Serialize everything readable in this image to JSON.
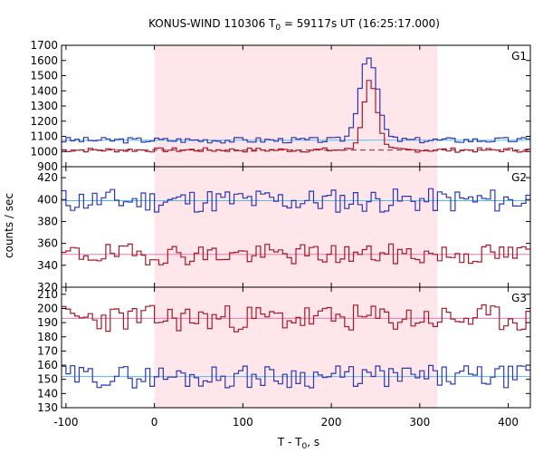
{
  "chart_data": {
    "type": "line",
    "title_main": "KONUS-WIND 110306 T",
    "title_sub": "0",
    "title_rest": " = 59117s UT (16:25:17.000)",
    "xlabel_main": "T - T",
    "xlabel_sub": "0",
    "xlabel_rest": ", s",
    "ylabel": "counts / sec",
    "xlim": [
      -105,
      425
    ],
    "xticks": [
      -100,
      0,
      100,
      200,
      300,
      400
    ],
    "shaded_interval": [
      0,
      320
    ],
    "shade_color": "#ffe6ea",
    "panels": [
      {
        "name": "G1",
        "ylim": [
          900,
          1700
        ],
        "yticks": [
          900,
          1000,
          1100,
          1200,
          1300,
          1400,
          1500,
          1600,
          1700
        ],
        "series": [
          {
            "color": "#2a38b8",
            "base": 1075,
            "noise": 12,
            "seed": 3,
            "peak": {
              "center": 242,
              "width": 14,
              "height": 560
            }
          },
          {
            "color": "#a8182a",
            "base": 1010,
            "noise": 9,
            "seed": 7,
            "peak": {
              "center": 244,
              "width": 11,
              "height": 460
            }
          }
        ],
        "bg_lines": [
          {
            "color": "#5ab8e8",
            "value": 1075,
            "dash": false
          },
          {
            "color": "#a8182a",
            "value": 1010,
            "dash": true
          }
        ]
      },
      {
        "name": "G2",
        "ylim": [
          320,
          430
        ],
        "yticks": [
          320,
          340,
          360,
          380,
          400,
          420
        ],
        "series": [
          {
            "color": "#2a38b8",
            "base": 399,
            "noise": 7,
            "seed": 11
          },
          {
            "color": "#a8182a",
            "base": 350,
            "noise": 6,
            "seed": 19
          }
        ],
        "bg_lines": [
          {
            "color": "#5ab8e8",
            "value": 399,
            "dash": false
          },
          {
            "color": "#e87ab0",
            "value": 350,
            "dash": false
          }
        ]
      },
      {
        "name": "G3",
        "ylim": [
          130,
          215
        ],
        "yticks": [
          130,
          140,
          150,
          160,
          170,
          180,
          190,
          200,
          210
        ],
        "series": [
          {
            "color": "#a8182a",
            "base": 193,
            "noise": 6,
            "seed": 23
          },
          {
            "color": "#2a38b8",
            "base": 152,
            "noise": 5,
            "seed": 29
          }
        ],
        "bg_lines": [
          {
            "color": "#e87ab0",
            "value": 193,
            "dash": false
          },
          {
            "color": "#5ab8e8",
            "value": 152,
            "dash": false
          }
        ]
      }
    ]
  }
}
